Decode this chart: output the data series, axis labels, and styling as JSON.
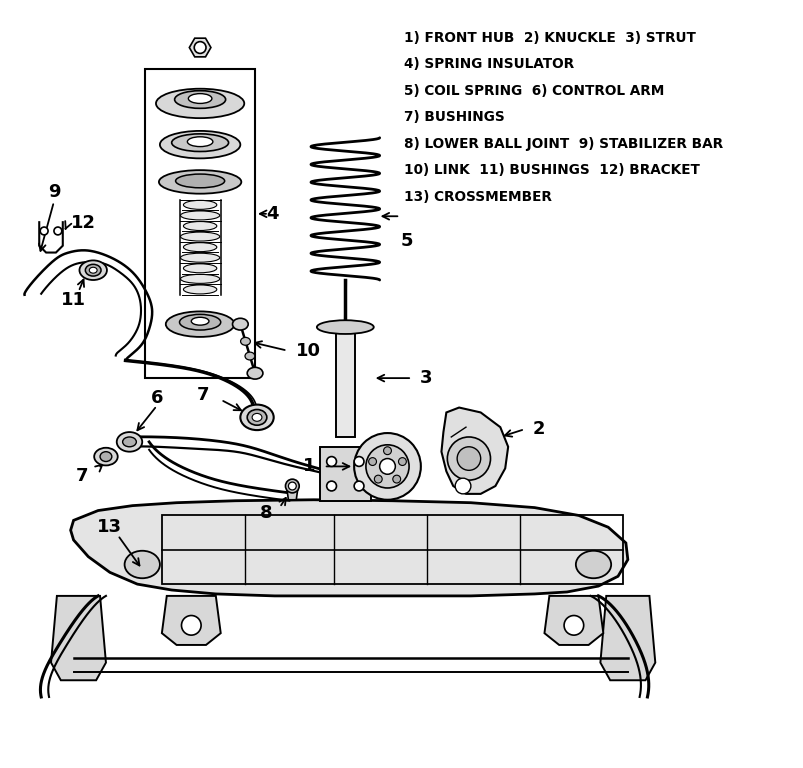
{
  "bg_color": "#ffffff",
  "fig_width": 8.04,
  "fig_height": 7.68,
  "dpi": 100,
  "legend_lines": [
    "1) FRONT HUB  2) KNUCKLE  3) STRUT",
    "4) SPRING INSULATOR",
    "5) COIL SPRING  6) CONTROL ARM",
    "7) BUSHINGS",
    "8) LOWER BALL JOINT  9) STABILIZER BAR",
    "10) LINK  11) BUSHINGS  12) BRACKET",
    "13) CROSSMEMBER"
  ],
  "text_color": "#000000",
  "line_color": "#000000",
  "label_fontsize": 11,
  "legend_fontsize": 9.8
}
